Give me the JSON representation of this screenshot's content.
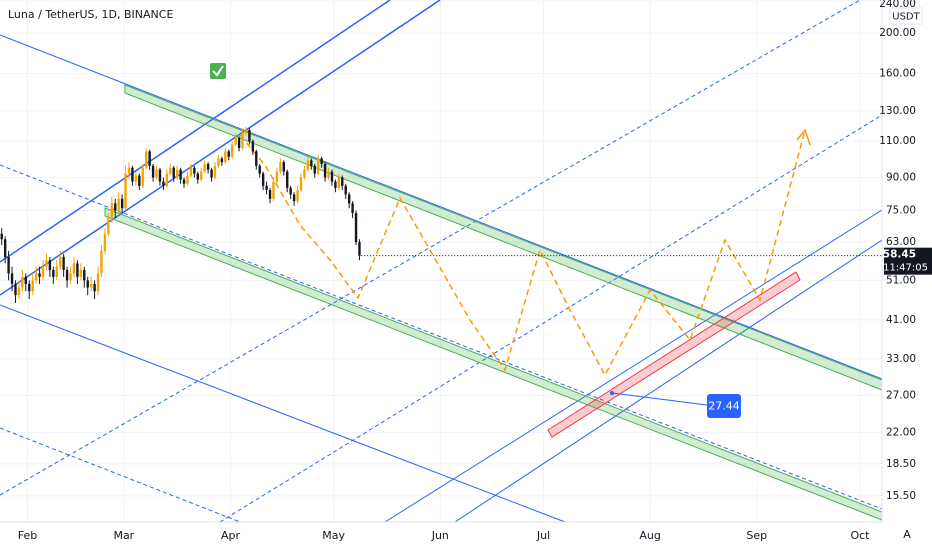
{
  "chart_data": {
    "type": "candlestick",
    "title": "Luna / TetherUS, 1D, BINANCE",
    "unit_label": "USDT",
    "up_color": "#f5a300",
    "down_color": "#131722",
    "log_scale": true,
    "grid": true,
    "candles": [
      [
        66,
        68,
        62,
        64
      ],
      [
        64,
        65,
        56,
        58
      ],
      [
        58,
        60,
        51,
        53
      ],
      [
        53,
        55,
        48,
        50
      ],
      [
        50,
        51,
        45,
        47
      ],
      [
        47,
        51,
        46,
        49
      ],
      [
        49,
        54,
        48,
        52
      ],
      [
        52,
        53,
        48,
        50
      ],
      [
        50,
        51,
        46,
        48
      ],
      [
        48,
        53,
        47,
        51
      ],
      [
        51,
        55,
        50,
        53
      ],
      [
        53,
        55,
        50,
        52
      ],
      [
        52,
        57,
        51,
        55
      ],
      [
        55,
        59,
        54,
        57
      ],
      [
        57,
        58,
        52,
        54
      ],
      [
        54,
        55,
        50,
        52
      ],
      [
        52,
        57,
        51,
        55
      ],
      [
        55,
        60,
        54,
        58
      ],
      [
        58,
        59,
        52,
        54
      ],
      [
        54,
        55,
        49,
        51
      ],
      [
        51,
        55,
        50,
        53
      ],
      [
        53,
        58,
        52,
        56
      ],
      [
        56,
        57,
        50,
        52
      ],
      [
        52,
        56,
        51,
        54
      ],
      [
        54,
        55,
        49,
        51
      ],
      [
        51,
        52,
        47,
        49
      ],
      [
        49,
        52,
        48,
        50
      ],
      [
        50,
        51,
        46,
        48
      ],
      [
        48,
        55,
        47,
        53
      ],
      [
        53,
        62,
        52,
        60
      ],
      [
        60,
        68,
        59,
        66
      ],
      [
        66,
        74,
        65,
        72
      ],
      [
        72,
        81,
        70,
        78
      ],
      [
        78,
        80,
        72,
        75
      ],
      [
        75,
        83,
        74,
        80
      ],
      [
        80,
        82,
        74,
        76
      ],
      [
        76,
        96,
        75,
        92
      ],
      [
        92,
        98,
        89,
        95
      ],
      [
        95,
        96,
        86,
        88
      ],
      [
        88,
        93,
        86,
        91
      ],
      [
        91,
        92,
        84,
        86
      ],
      [
        86,
        97,
        85,
        95
      ],
      [
        95,
        106,
        94,
        104
      ],
      [
        104,
        105,
        94,
        96
      ],
      [
        96,
        97,
        88,
        90
      ],
      [
        90,
        96,
        89,
        94
      ],
      [
        94,
        95,
        86,
        88
      ],
      [
        88,
        90,
        84,
        86
      ],
      [
        86,
        94,
        85,
        92
      ],
      [
        92,
        97,
        91,
        95
      ],
      [
        95,
        96,
        88,
        90
      ],
      [
        90,
        96,
        89,
        94
      ],
      [
        94,
        95,
        87,
        89
      ],
      [
        89,
        90,
        85,
        87
      ],
      [
        87,
        93,
        86,
        91
      ],
      [
        91,
        97,
        90,
        95
      ],
      [
        95,
        96,
        90,
        92
      ],
      [
        92,
        93,
        87,
        89
      ],
      [
        89,
        95,
        88,
        93
      ],
      [
        93,
        99,
        92,
        97
      ],
      [
        97,
        98,
        92,
        94
      ],
      [
        94,
        95,
        88,
        90
      ],
      [
        90,
        98,
        89,
        96
      ],
      [
        96,
        102,
        95,
        100
      ],
      [
        100,
        101,
        96,
        98
      ],
      [
        98,
        106,
        97,
        104
      ],
      [
        104,
        105,
        99,
        101
      ],
      [
        101,
        110,
        100,
        108
      ],
      [
        108,
        115,
        107,
        112
      ],
      [
        112,
        113,
        104,
        106
      ],
      [
        106,
        118,
        105,
        115
      ],
      [
        115,
        119,
        113,
        117
      ],
      [
        117,
        118,
        108,
        110
      ],
      [
        110,
        111,
        102,
        104
      ],
      [
        104,
        105,
        94,
        96
      ],
      [
        96,
        97,
        90,
        92
      ],
      [
        92,
        93,
        84,
        86
      ],
      [
        86,
        88,
        82,
        84
      ],
      [
        84,
        85,
        78,
        80
      ],
      [
        80,
        90,
        79,
        88
      ],
      [
        88,
        95,
        87,
        93
      ],
      [
        93,
        100,
        92,
        98
      ],
      [
        98,
        99,
        91,
        93
      ],
      [
        93,
        94,
        83,
        85
      ],
      [
        85,
        86,
        80,
        82
      ],
      [
        82,
        83,
        77,
        79
      ],
      [
        79,
        86,
        78,
        84
      ],
      [
        84,
        92,
        83,
        90
      ],
      [
        90,
        96,
        89,
        94
      ],
      [
        94,
        101,
        93,
        99
      ],
      [
        99,
        100,
        94,
        96
      ],
      [
        96,
        97,
        90,
        92
      ],
      [
        92,
        102,
        91,
        100
      ],
      [
        100,
        101,
        95,
        97
      ],
      [
        97,
        98,
        88,
        90
      ],
      [
        90,
        95,
        89,
        93
      ],
      [
        93,
        94,
        86,
        88
      ],
      [
        88,
        89,
        83,
        85
      ],
      [
        85,
        92,
        84,
        90
      ],
      [
        90,
        91,
        84,
        86
      ],
      [
        86,
        87,
        80,
        82
      ],
      [
        82,
        83,
        76,
        78
      ],
      [
        78,
        79,
        72,
        74
      ],
      [
        74,
        75,
        62,
        63
      ],
      [
        63,
        64,
        57,
        58.45
      ]
    ],
    "xlim": [
      0,
      256.4
    ],
    "xticks": [
      {
        "value": 8,
        "label": "Feb"
      },
      {
        "value": 36,
        "label": "Mar"
      },
      {
        "value": 67,
        "label": "Apr"
      },
      {
        "value": 97,
        "label": "May"
      },
      {
        "value": 128,
        "label": "Jun"
      },
      {
        "value": 158,
        "label": "Jul"
      },
      {
        "value": 189,
        "label": "Aug"
      },
      {
        "value": 220,
        "label": "Sep"
      },
      {
        "value": 250,
        "label": "Oct"
      }
    ],
    "ylim": [
      13.42,
      240
    ],
    "yticks": [
      {
        "value": 240,
        "label": "240.00"
      },
      {
        "value": 200,
        "label": "200.00"
      },
      {
        "value": 160,
        "label": "160.00"
      },
      {
        "value": 130,
        "label": "130.00"
      },
      {
        "value": 110,
        "label": "110.00"
      },
      {
        "value": 90,
        "label": "90.00"
      },
      {
        "value": 75,
        "label": "75.00"
      },
      {
        "value": 63,
        "label": "63.00"
      },
      {
        "value": 51,
        "label": "51.00"
      },
      {
        "value": 41,
        "label": "41.00"
      },
      {
        "value": 33,
        "label": "33.00"
      },
      {
        "value": 27,
        "label": "27.00"
      },
      {
        "value": 22,
        "label": "22.00"
      },
      {
        "value": 18.5,
        "label": "18.50"
      },
      {
        "value": 15.5,
        "label": "15.50"
      }
    ],
    "last_price": 58.45,
    "countdown": "11:47:05",
    "annotation_value": 27.44,
    "autoscale_label": "A"
  }
}
